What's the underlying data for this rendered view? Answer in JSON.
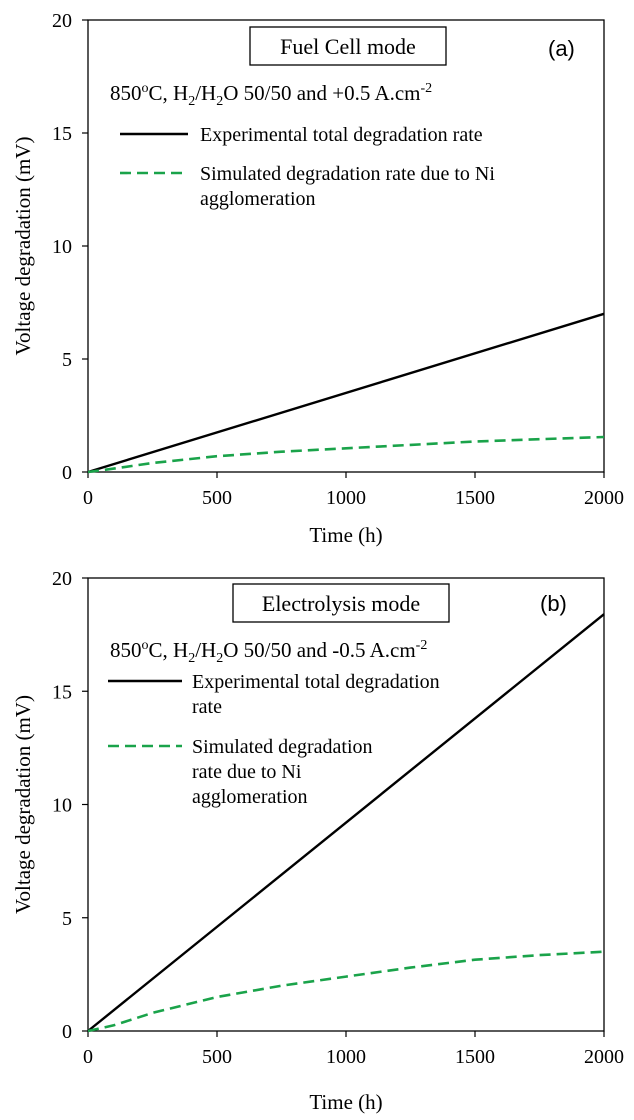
{
  "chart_data": [
    {
      "type": "line",
      "panel_label": "(a)",
      "mode_title": "Fuel Cell mode",
      "conditions": {
        "prefix": "850",
        "deg_sup": "o",
        "c_h": "C, H",
        "sub2a": "2",
        "slash_h": "/H",
        "sub2b": "2",
        "mid": "O 50/50 and +0.5 A.cm",
        "exp": "-2"
      },
      "xlabel": "Time (h)",
      "ylabel": "Voltage  degradation (mV)",
      "xlim": [
        0,
        2000
      ],
      "ylim": [
        0,
        20
      ],
      "xticks": [
        0,
        500,
        1000,
        1500,
        2000
      ],
      "yticks": [
        0,
        5,
        10,
        15,
        20
      ],
      "legend": [
        {
          "lines": [
            "Experimental total degradation rate"
          ]
        },
        {
          "lines": [
            "Simulated degradation rate due to Ni",
            "agglomeration"
          ]
        }
      ],
      "series": [
        {
          "name": "Experimental total degradation rate",
          "style": "solid",
          "color": "#000000",
          "x": [
            0,
            2000
          ],
          "y": [
            0,
            7.0
          ]
        },
        {
          "name": "Simulated degradation rate due to Ni agglomeration",
          "style": "dashed",
          "color": "#1aa34a",
          "x": [
            0,
            100,
            250,
            500,
            750,
            1000,
            1250,
            1500,
            1750,
            2000
          ],
          "y": [
            0,
            0.15,
            0.4,
            0.7,
            0.9,
            1.05,
            1.2,
            1.35,
            1.45,
            1.55
          ]
        }
      ]
    },
    {
      "type": "line",
      "panel_label": "(b)",
      "mode_title": "Electrolysis mode",
      "conditions": {
        "prefix": "850",
        "deg_sup": "o",
        "c_h": "C, H",
        "sub2a": "2",
        "slash_h": "/H",
        "sub2b": "2",
        "mid": "O 50/50 and -0.5 A.cm",
        "exp": "-2"
      },
      "xlabel": "Time (h)",
      "ylabel": "Voltage degradation (mV)",
      "xlim": [
        0,
        2000
      ],
      "ylim": [
        0,
        20
      ],
      "xticks": [
        0,
        500,
        1000,
        1500,
        2000
      ],
      "yticks": [
        0,
        5,
        10,
        15,
        20
      ],
      "legend": [
        {
          "lines": [
            "Experimental total degradation",
            "rate"
          ]
        },
        {
          "lines": [
            "Simulated degradation",
            "rate due to Ni",
            "agglomeration"
          ]
        }
      ],
      "series": [
        {
          "name": "Experimental total degradation rate",
          "style": "solid",
          "color": "#000000",
          "x": [
            0,
            2000
          ],
          "y": [
            0,
            18.4
          ]
        },
        {
          "name": "Simulated degradation rate due to Ni agglomeration",
          "style": "dashed",
          "color": "#1aa34a",
          "x": [
            0,
            100,
            250,
            500,
            750,
            1000,
            1250,
            1500,
            1750,
            2000
          ],
          "y": [
            0,
            0.25,
            0.8,
            1.5,
            2.0,
            2.4,
            2.8,
            3.15,
            3.35,
            3.5
          ]
        }
      ]
    }
  ]
}
